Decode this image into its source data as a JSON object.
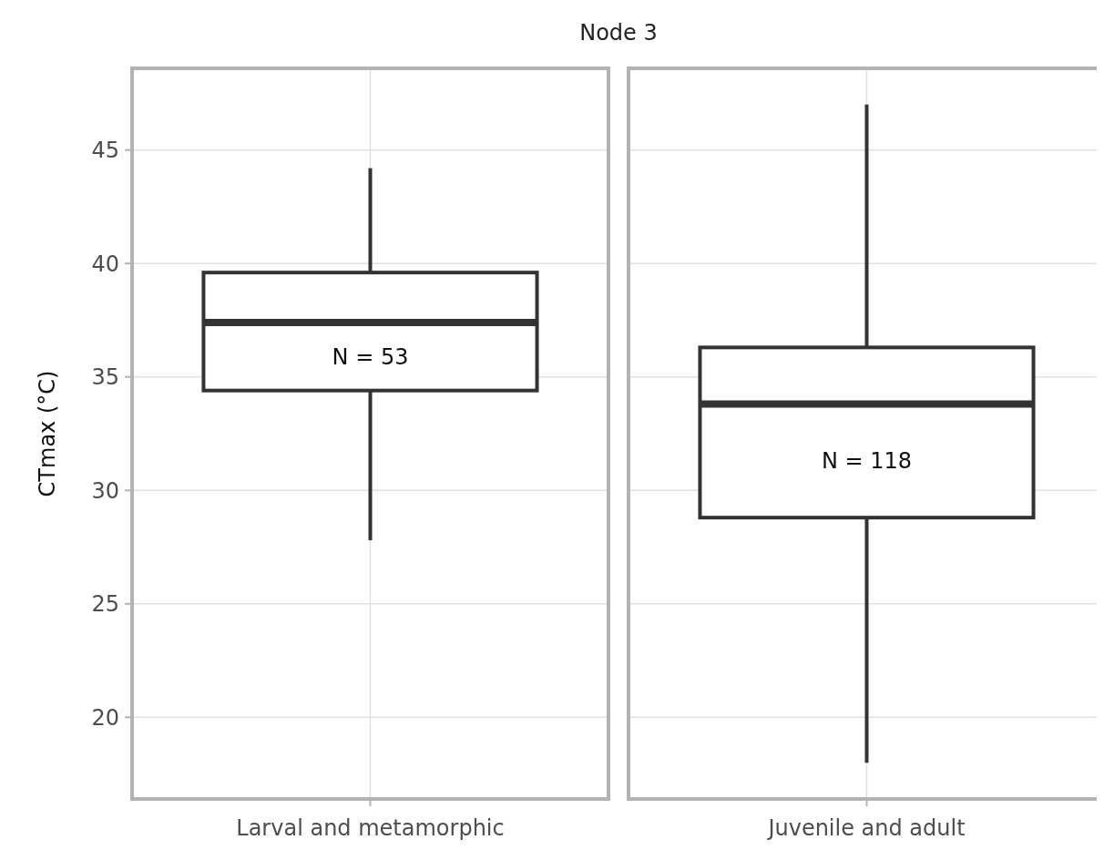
{
  "chart_data": {
    "type": "box",
    "title": "Node 3",
    "ylabel": "CTmax (°C)",
    "categories": [
      "Larval and metamorphic",
      "Juvenile and adult"
    ],
    "boxes": [
      {
        "low": 27.8,
        "q1": 34.4,
        "median": 37.4,
        "q3": 39.6,
        "high": 44.2
      },
      {
        "low": 18.0,
        "q1": 28.8,
        "median": 33.8,
        "q3": 36.3,
        "high": 47.0
      }
    ],
    "ylim": [
      16.4,
      48.6
    ],
    "yticks": [
      20,
      25,
      30,
      35,
      40,
      45
    ],
    "grid": true,
    "annotations": [
      "N = 53",
      "N = 118"
    ]
  }
}
